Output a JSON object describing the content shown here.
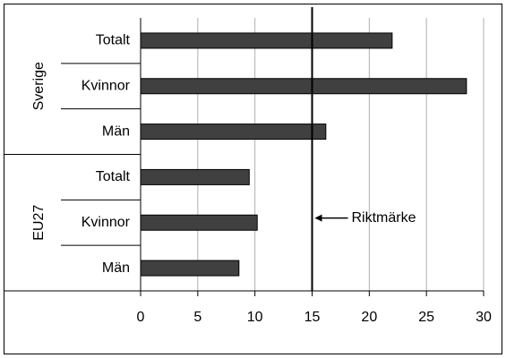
{
  "chart_data": {
    "type": "bar",
    "orientation": "horizontal",
    "groups": [
      "Sverige",
      "EU27"
    ],
    "categories": [
      "Totalt",
      "Kvinnor",
      "Män",
      "Totalt",
      "Kvinnor",
      "Män"
    ],
    "values": [
      22,
      28.5,
      16.2,
      9.5,
      10.2,
      8.6
    ],
    "color": "#404040",
    "xlim": [
      0,
      30
    ],
    "xticks": [
      0,
      5,
      10,
      15,
      20,
      25,
      30
    ],
    "grid": true,
    "reference": {
      "label": "Riktmärke",
      "value": 15
    }
  }
}
